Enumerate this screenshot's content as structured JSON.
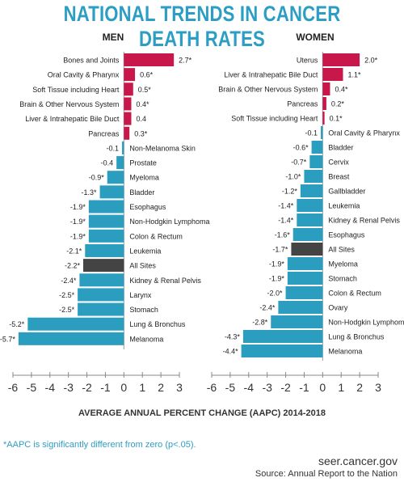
{
  "title": "NATIONAL TRENDS IN CANCER DEATH RATES",
  "xlabel": "AVERAGE ANNUAL PERCENT CHANGE (AAPC) 2014-2018",
  "footnote": "*AAPC is significantly different from zero (p<.05).",
  "site": "seer.cancer.gov",
  "source": "Source: Annual Report to the Nation",
  "colors": {
    "increase": "#c8174a",
    "decrease": "#2b9dbf",
    "all_sites": "#444444",
    "title": "#2c9ec4"
  },
  "chart_data": [
    {
      "type": "bar",
      "title": "MEN",
      "xlim": [
        -6,
        3
      ],
      "ticks": [
        "-6",
        "-5",
        "-4",
        "-3",
        "-2",
        "-1",
        "0",
        "1",
        "2",
        "3"
      ],
      "bars": [
        {
          "label": "Bones and Joints",
          "value": 2.7,
          "text": "2.7*"
        },
        {
          "label": "Oral Cavity & Pharynx",
          "value": 0.6,
          "text": "0.6*"
        },
        {
          "label": "Soft Tissue including Heart",
          "value": 0.5,
          "text": "0.5*"
        },
        {
          "label": "Brain & Other Nervous System",
          "value": 0.4,
          "text": "0.4*"
        },
        {
          "label": "Liver & Intrahepatic Bile Duct",
          "value": 0.4,
          "text": "0.4"
        },
        {
          "label": "Pancreas",
          "value": 0.3,
          "text": "0.3*"
        },
        {
          "label": "Non-Melanoma Skin",
          "value": -0.1,
          "text": "-0.1"
        },
        {
          "label": "Prostate",
          "value": -0.4,
          "text": "-0.4"
        },
        {
          "label": "Myeloma",
          "value": -0.9,
          "text": "-0.9*"
        },
        {
          "label": "Bladder",
          "value": -1.3,
          "text": "-1.3*"
        },
        {
          "label": "Esophagus",
          "value": -1.9,
          "text": "-1.9*"
        },
        {
          "label": "Non-Hodgkin Lymphoma",
          "value": -1.9,
          "text": "-1.9*"
        },
        {
          "label": "Colon & Rectum",
          "value": -1.9,
          "text": "-1.9*"
        },
        {
          "label": "Leukemia",
          "value": -2.1,
          "text": "-2.1*"
        },
        {
          "label": "All Sites",
          "value": -2.2,
          "text": "-2.2*",
          "highlight": true
        },
        {
          "label": "Kidney & Renal Pelvis",
          "value": -2.4,
          "text": "-2.4*"
        },
        {
          "label": "Larynx",
          "value": -2.5,
          "text": "-2.5*"
        },
        {
          "label": "Stomach",
          "value": -2.5,
          "text": "-2.5*"
        },
        {
          "label": "Lung & Bronchus",
          "value": -5.2,
          "text": "-5.2*"
        },
        {
          "label": "Melanoma",
          "value": -5.7,
          "text": "-5.7*"
        }
      ]
    },
    {
      "type": "bar",
      "title": "WOMEN",
      "xlim": [
        -6,
        3
      ],
      "ticks": [
        "-6",
        "-5",
        "-4",
        "-3",
        "-2",
        "-1",
        "0",
        "1",
        "2",
        "3"
      ],
      "bars": [
        {
          "label": "Uterus",
          "value": 2.0,
          "text": "2.0*"
        },
        {
          "label": "Liver & Intrahepatic Bile Duct",
          "value": 1.1,
          "text": "1.1*"
        },
        {
          "label": "Brain & Other Nervous System",
          "value": 0.4,
          "text": "0.4*"
        },
        {
          "label": "Pancreas",
          "value": 0.2,
          "text": "0.2*"
        },
        {
          "label": "Soft Tissue including Heart",
          "value": 0.1,
          "text": "0.1*"
        },
        {
          "label": "Oral Cavity & Pharynx",
          "value": -0.1,
          "text": "-0.1"
        },
        {
          "label": "Bladder",
          "value": -0.6,
          "text": "-0.6*"
        },
        {
          "label": "Cervix",
          "value": -0.7,
          "text": "-0.7*"
        },
        {
          "label": "Breast",
          "value": -1.0,
          "text": "-1.0*"
        },
        {
          "label": "Gallbladder",
          "value": -1.2,
          "text": "-1.2*"
        },
        {
          "label": "Leukemia",
          "value": -1.4,
          "text": "-1.4*"
        },
        {
          "label": "Kidney & Renal Pelvis",
          "value": -1.4,
          "text": "-1.4*"
        },
        {
          "label": "Esophagus",
          "value": -1.6,
          "text": "-1.6*"
        },
        {
          "label": "All Sites",
          "value": -1.7,
          "text": "-1.7*",
          "highlight": true
        },
        {
          "label": "Myeloma",
          "value": -1.9,
          "text": "-1.9*"
        },
        {
          "label": "Stomach",
          "value": -1.9,
          "text": "-1.9*"
        },
        {
          "label": "Colon & Rectum",
          "value": -2.0,
          "text": "-2.0*"
        },
        {
          "label": "Ovary",
          "value": -2.4,
          "text": "-2.4*"
        },
        {
          "label": "Non-Hodgkin Lymphoma",
          "value": -2.8,
          "text": "-2.8*"
        },
        {
          "label": "Lung & Bronchus",
          "value": -4.3,
          "text": "-4.3*"
        },
        {
          "label": "Melanoma",
          "value": -4.4,
          "text": "-4.4*"
        }
      ]
    }
  ]
}
